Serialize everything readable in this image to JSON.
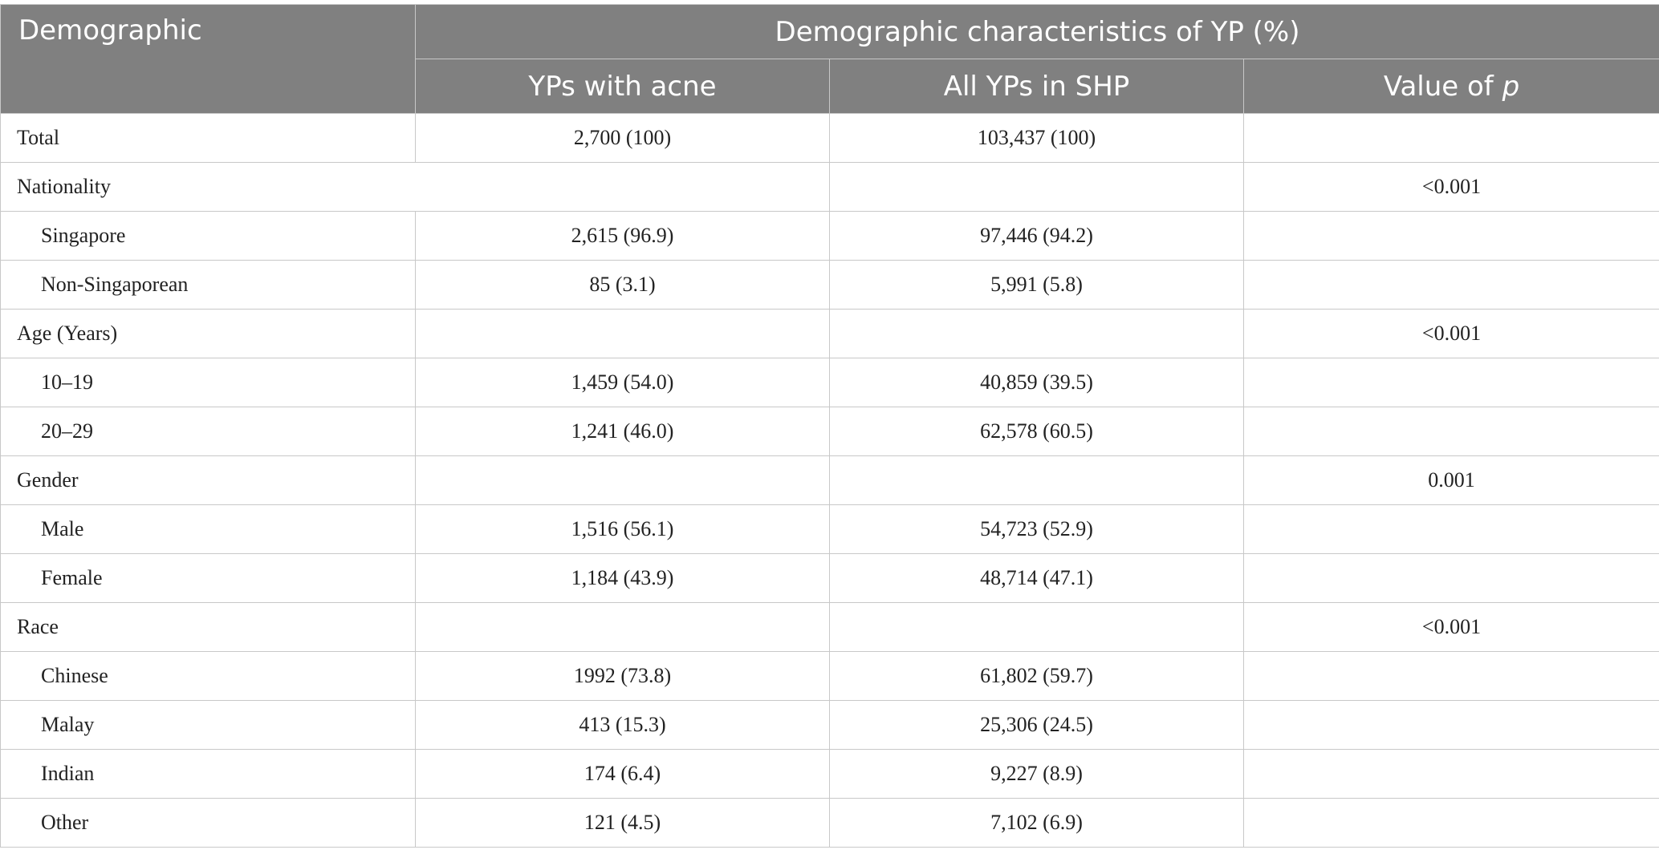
{
  "header": {
    "demographic": "Demographic",
    "group_title": "Demographic characteristics of YP (%)",
    "col_acne": "YPs with acne",
    "col_all": "All YPs in SHP",
    "col_p_prefix": "Value of ",
    "col_p_symbol": "p"
  },
  "rows": {
    "total": {
      "label": "Total",
      "acne": "2,700 (100)",
      "all": "103,437 (100)",
      "p": ""
    },
    "nationality": {
      "label": "Nationality",
      "all": "",
      "p": "<0.001"
    },
    "singapore": {
      "label": "Singapore",
      "acne": "2,615 (96.9)",
      "all": "97,446 (94.2)",
      "p": ""
    },
    "non_singaporean": {
      "label": "Non-Singaporean",
      "acne": "85 (3.1)",
      "all": "5,991 (5.8)",
      "p": ""
    },
    "age": {
      "label": "Age (Years)",
      "acne": "",
      "all": "",
      "p": "<0.001"
    },
    "age_10_19": {
      "label": "10–19",
      "acne": "1,459 (54.0)",
      "all": "40,859 (39.5)",
      "p": ""
    },
    "age_20_29": {
      "label": "20–29",
      "acne": "1,241 (46.0)",
      "all": "62,578 (60.5)",
      "p": ""
    },
    "gender": {
      "label": "Gender",
      "acne": "",
      "all": "",
      "p": "0.001"
    },
    "male": {
      "label": "Male",
      "acne": "1,516 (56.1)",
      "all": "54,723 (52.9)",
      "p": ""
    },
    "female": {
      "label": "Female",
      "acne": "1,184 (43.9)",
      "all": "48,714 (47.1)",
      "p": ""
    },
    "race": {
      "label": "Race",
      "acne": "",
      "all": "",
      "p": "<0.001"
    },
    "chinese": {
      "label": "Chinese",
      "acne": "1992 (73.8)",
      "all": "61,802 (59.7)",
      "p": ""
    },
    "malay": {
      "label": "Malay",
      "acne": "413 (15.3)",
      "all": "25,306 (24.5)",
      "p": ""
    },
    "indian": {
      "label": "Indian",
      "acne": "174 (6.4)",
      "all": "9,227 (8.9)",
      "p": ""
    },
    "other": {
      "label": "Other",
      "acne": "121 (4.5)",
      "all": "7,102 (6.9)",
      "p": ""
    }
  },
  "colors": {
    "header_bg": "#808080",
    "header_text": "#ffffff",
    "border": "#c8c8c8",
    "body_text": "#222222"
  }
}
